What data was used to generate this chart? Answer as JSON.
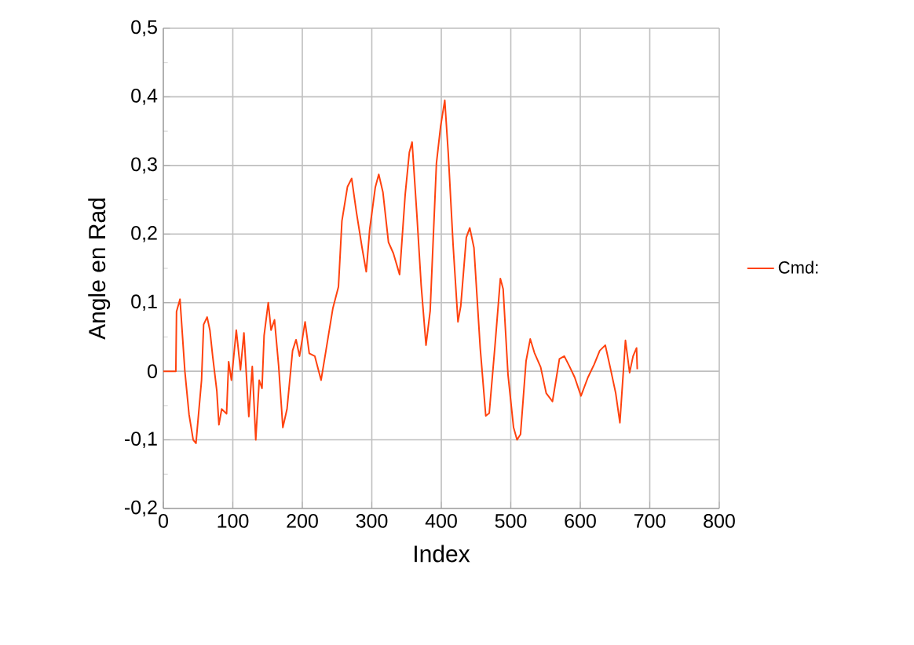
{
  "chart_data": {
    "type": "line",
    "xlabel": "Index",
    "ylabel": "Angle en Rad",
    "legend": "right",
    "grid": true,
    "marker": "none",
    "line_style": "solid",
    "xlim": [
      0,
      800
    ],
    "xticks": [
      0,
      100,
      200,
      300,
      400,
      500,
      600,
      700,
      800
    ],
    "ylim": [
      -0.2,
      0.5
    ],
    "yticks": [
      {
        "value": -0.2,
        "label": "-0,2"
      },
      {
        "value": -0.1,
        "label": "-0,1"
      },
      {
        "value": 0,
        "label": "0"
      },
      {
        "value": 0.1,
        "label": "0,1"
      },
      {
        "value": 0.2,
        "label": "0,2"
      },
      {
        "value": 0.3,
        "label": "0,3"
      },
      {
        "value": 0.4,
        "label": "0,4"
      },
      {
        "value": 0.5,
        "label": "0,5"
      }
    ],
    "series": [
      {
        "name": "Cmd:",
        "color": "#ff420e",
        "x": [
          0,
          18,
          19,
          24,
          31,
          37,
          43,
          47,
          55,
          58,
          63,
          67,
          71,
          77,
          80,
          84,
          91,
          94,
          98,
          105,
          111,
          116,
          123,
          128,
          133,
          138,
          142,
          145,
          151,
          155,
          160,
          166,
          172,
          178,
          186,
          191,
          196,
          204,
          210,
          218,
          227,
          234,
          244,
          252,
          257,
          265,
          271,
          278,
          286,
          292,
          297,
          305,
          310,
          316,
          324,
          331,
          340,
          348,
          354,
          358,
          365,
          371,
          378,
          384,
          393,
          399,
          405,
          410,
          417,
          424,
          428,
          436,
          441,
          447,
          456,
          464,
          469,
          477,
          485,
          489,
          496,
          504,
          509,
          514,
          522,
          528,
          534,
          543,
          551,
          560,
          570,
          577,
          585,
          592,
          601,
          611,
          620,
          628,
          636,
          643,
          651,
          657,
          665,
          671,
          676,
          681,
          682
        ],
        "values": [
          0,
          0,
          0.087,
          0.105,
          0,
          -0.063,
          -0.1,
          -0.105,
          -0.013,
          0.068,
          0.079,
          0.06,
          0.022,
          -0.029,
          -0.078,
          -0.055,
          -0.062,
          0.014,
          -0.013,
          0.06,
          0.002,
          0.056,
          -0.066,
          0.007,
          -0.1,
          -0.013,
          -0.025,
          0.052,
          0.1,
          0.06,
          0.075,
          0.007,
          -0.082,
          -0.055,
          0.03,
          0.046,
          0.022,
          0.072,
          0.026,
          0.022,
          -0.013,
          0.03,
          0.092,
          0.123,
          0.219,
          0.269,
          0.281,
          0.231,
          0.18,
          0.145,
          0.207,
          0.268,
          0.287,
          0.261,
          0.188,
          0.172,
          0.141,
          0.257,
          0.319,
          0.334,
          0.226,
          0.126,
          0.038,
          0.088,
          0.303,
          0.357,
          0.395,
          0.318,
          0.184,
          0.072,
          0.095,
          0.195,
          0.209,
          0.18,
          0.034,
          -0.065,
          -0.061,
          0.034,
          0.135,
          0.12,
          -0.005,
          -0.082,
          -0.1,
          -0.092,
          0.015,
          0.047,
          0.027,
          0.006,
          -0.032,
          -0.044,
          0.018,
          0.022,
          0.006,
          -0.009,
          -0.036,
          -0.009,
          0.01,
          0.03,
          0.038,
          0.006,
          -0.032,
          -0.075,
          0.045,
          -0.002,
          0.022,
          0.034,
          0.003
        ]
      }
    ]
  }
}
